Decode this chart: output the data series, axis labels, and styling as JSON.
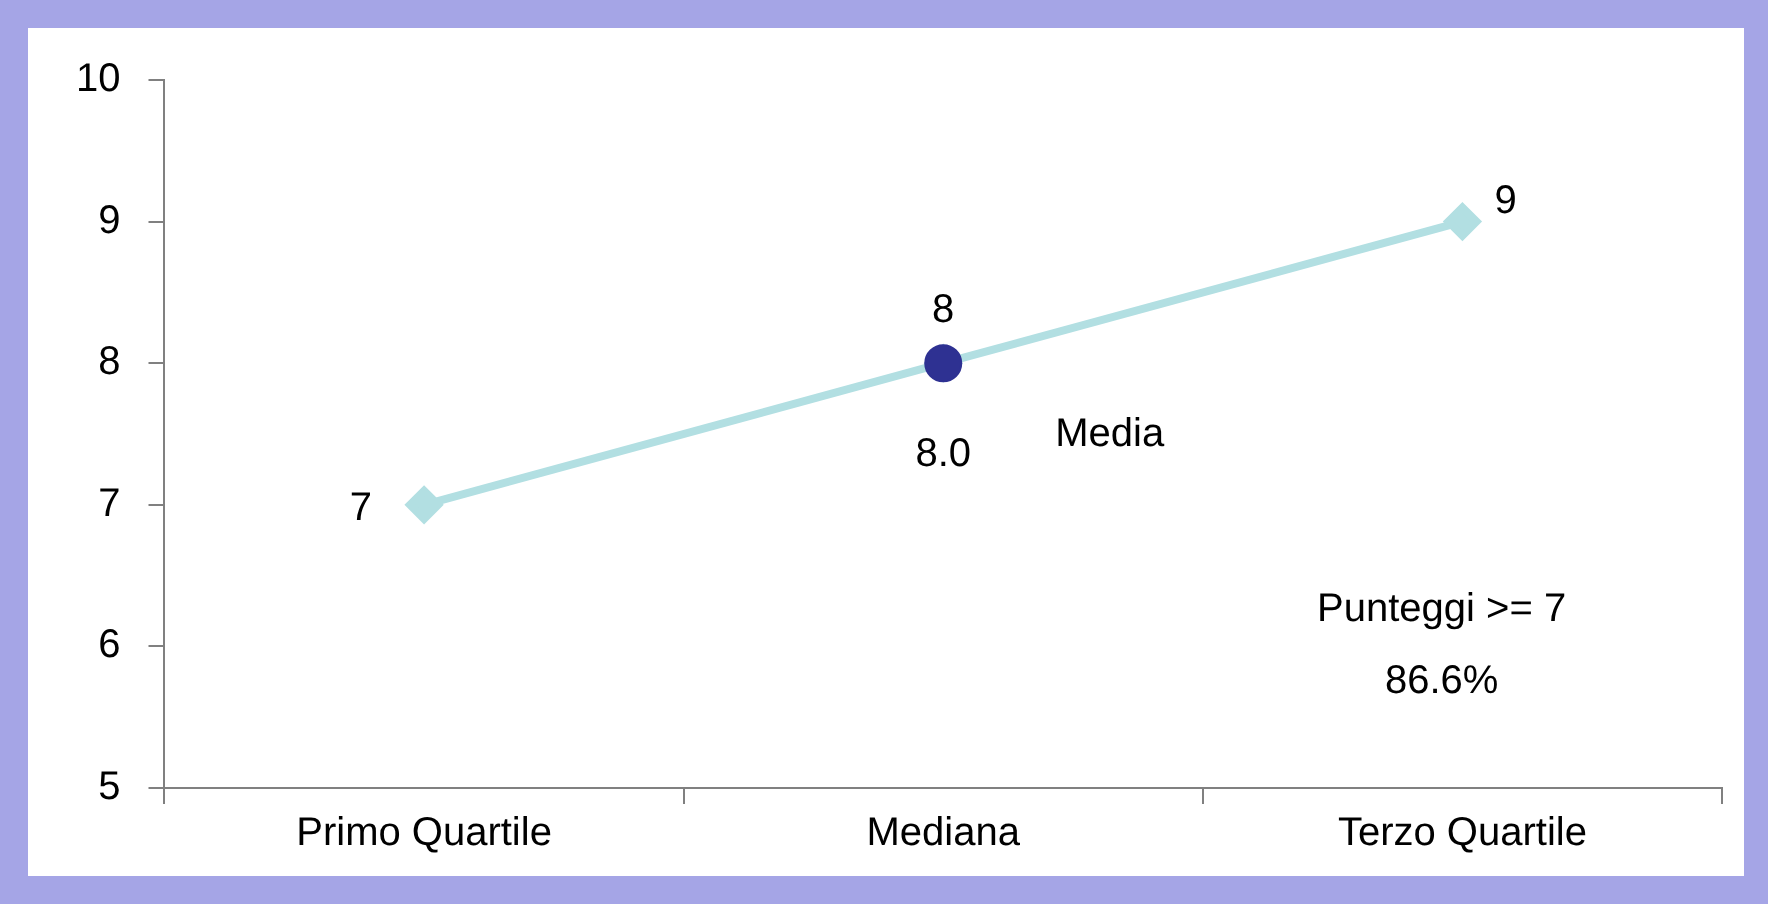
{
  "chart_data": {
    "type": "line",
    "categories": [
      "Primo Quartile",
      "Mediana",
      "Terzo Quartile"
    ],
    "series": [
      {
        "type": "line",
        "color": "#b2dfe2",
        "values": [
          7,
          8,
          9
        ],
        "value_labels": [
          "7",
          "8",
          "9"
        ],
        "marker": "diamond"
      },
      {
        "type": "scatter",
        "name": "Media",
        "color": "#2e3192",
        "x": [
          "Mediana"
        ],
        "values": [
          8.0
        ],
        "value_labels": [
          "8.0"
        ],
        "marker": "circle"
      }
    ],
    "ylim": [
      5,
      10
    ],
    "yticks": [
      5,
      6,
      7,
      8,
      9,
      10
    ],
    "grid": false,
    "legend": false,
    "annotations": [
      "Punteggi >= 7",
      "86.6%"
    ]
  }
}
